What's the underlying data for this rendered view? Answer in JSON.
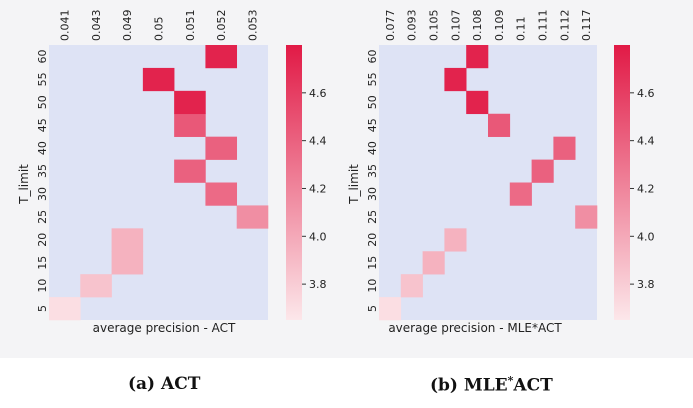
{
  "chart_data": [
    {
      "type": "heatmap",
      "caption": "(a) ACT",
      "xlabel": "average precision - ACT",
      "ylabel": "T_limit",
      "x_categories": [
        "0.041",
        "0.043",
        "0.049",
        "0.05",
        "0.051",
        "0.052",
        "0.053"
      ],
      "y_categories": [
        "5",
        "10",
        "15",
        "20",
        "25",
        "30",
        "35",
        "40",
        "45",
        "50",
        "55",
        "60"
      ],
      "cells": [
        {
          "x": "0.041",
          "y": "5",
          "value": 3.7
        },
        {
          "x": "0.043",
          "y": "10",
          "value": 3.85
        },
        {
          "x": "0.049",
          "y": "15",
          "value": 3.95
        },
        {
          "x": "0.049",
          "y": "20",
          "value": 3.95
        },
        {
          "x": "0.053",
          "y": "25",
          "value": 4.15
        },
        {
          "x": "0.052",
          "y": "30",
          "value": 4.35
        },
        {
          "x": "0.051",
          "y": "35",
          "value": 4.4
        },
        {
          "x": "0.052",
          "y": "40",
          "value": 4.4
        },
        {
          "x": "0.051",
          "y": "45",
          "value": 4.45
        },
        {
          "x": "0.051",
          "y": "50",
          "value": 4.75
        },
        {
          "x": "0.05",
          "y": "55",
          "value": 4.75
        },
        {
          "x": "0.052",
          "y": "60",
          "value": 4.75
        }
      ],
      "colorbar": {
        "min": 3.65,
        "max": 4.8,
        "ticks": [
          "3.8",
          "4.0",
          "4.2",
          "4.4",
          "4.6"
        ]
      }
    },
    {
      "type": "heatmap",
      "caption": "(b) MLE*ACT",
      "xlabel": "average precision - MLE*ACT",
      "ylabel": "T_limit",
      "x_categories": [
        "0.077",
        "0.093",
        "0.105",
        "0.107",
        "0.108",
        "0.109",
        "0.11",
        "0.111",
        "0.112",
        "0.117"
      ],
      "y_categories": [
        "5",
        "10",
        "15",
        "20",
        "25",
        "30",
        "35",
        "40",
        "45",
        "50",
        "55",
        "60"
      ],
      "cells": [
        {
          "x": "0.077",
          "y": "5",
          "value": 3.7
        },
        {
          "x": "0.093",
          "y": "10",
          "value": 3.85
        },
        {
          "x": "0.105",
          "y": "15",
          "value": 3.95
        },
        {
          "x": "0.107",
          "y": "20",
          "value": 3.95
        },
        {
          "x": "0.117",
          "y": "25",
          "value": 4.15
        },
        {
          "x": "0.11",
          "y": "30",
          "value": 4.35
        },
        {
          "x": "0.111",
          "y": "35",
          "value": 4.4
        },
        {
          "x": "0.112",
          "y": "40",
          "value": 4.4
        },
        {
          "x": "0.109",
          "y": "45",
          "value": 4.45
        },
        {
          "x": "0.108",
          "y": "50",
          "value": 4.75
        },
        {
          "x": "0.107",
          "y": "55",
          "value": 4.75
        },
        {
          "x": "0.108",
          "y": "60",
          "value": 4.75
        }
      ],
      "colorbar": {
        "min": 3.65,
        "max": 4.8,
        "ticks": [
          "3.8",
          "4.0",
          "4.2",
          "4.4",
          "4.6"
        ]
      }
    }
  ],
  "colors": {
    "empty_cell": "#dee3f5",
    "low": "#fce7ea",
    "high": "#e11a46"
  }
}
